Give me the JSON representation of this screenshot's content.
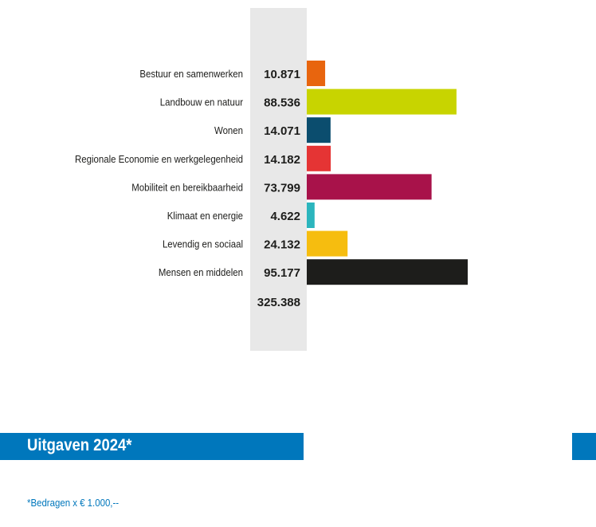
{
  "chart_data": {
    "type": "bar",
    "orientation": "horizontal",
    "categories": [
      "Bestuur en samenwerken",
      "Landbouw en natuur",
      "Wonen",
      "Regionale Economie en werkgelegenheid",
      "Mobiliteit en bereikbaarheid",
      "Klimaat en energie",
      "Levendig en sociaal",
      "Mensen en middelen"
    ],
    "values": [
      10871,
      88536,
      14071,
      14182,
      73799,
      4622,
      24132,
      95177
    ],
    "value_labels": [
      "10.871",
      "88.536",
      "14.071",
      "14.182",
      "73.799",
      "4.622",
      "24.132",
      "95.177"
    ],
    "colors": [
      "#e8650e",
      "#c8d400",
      "#0b4d6e",
      "#e53434",
      "#a8124a",
      "#2bb5bd",
      "#f6bd0f",
      "#1d1d1b"
    ],
    "total_label": "325.388",
    "title": "Uitgaven 2024*",
    "note": "*Bedragen x € 1.000,--",
    "grid": false
  }
}
